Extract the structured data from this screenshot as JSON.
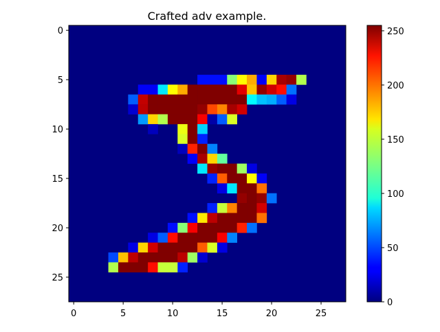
{
  "chart_data": {
    "type": "heatmap",
    "title": "Crafted adv example.",
    "colormap": "jet",
    "x_ticks": [
      0,
      5,
      10,
      15,
      20,
      25
    ],
    "y_ticks": [
      0,
      5,
      10,
      15,
      20,
      25
    ],
    "colorbar_ticks": [
      0,
      50,
      100,
      150,
      200,
      250
    ],
    "colorbar_range": [
      0,
      255
    ],
    "rows": 28,
    "cols": 28,
    "pixels": [
      [
        5,
        13,
        35
      ],
      [
        5,
        14,
        35
      ],
      [
        5,
        15,
        35
      ],
      [
        5,
        16,
        130
      ],
      [
        5,
        17,
        160
      ],
      [
        5,
        18,
        180
      ],
      [
        5,
        19,
        30
      ],
      [
        5,
        20,
        170
      ],
      [
        5,
        21,
        245
      ],
      [
        5,
        22,
        250
      ],
      [
        5,
        23,
        140
      ],
      [
        6,
        7,
        30
      ],
      [
        6,
        8,
        30
      ],
      [
        6,
        9,
        90
      ],
      [
        6,
        10,
        160
      ],
      [
        6,
        11,
        180
      ],
      [
        6,
        12,
        255
      ],
      [
        6,
        13,
        255
      ],
      [
        6,
        14,
        255
      ],
      [
        6,
        15,
        255
      ],
      [
        6,
        16,
        255
      ],
      [
        6,
        17,
        230
      ],
      [
        6,
        18,
        175
      ],
      [
        6,
        19,
        250
      ],
      [
        6,
        20,
        235
      ],
      [
        6,
        21,
        220
      ],
      [
        6,
        22,
        60
      ],
      [
        7,
        6,
        55
      ],
      [
        7,
        7,
        238
      ],
      [
        7,
        8,
        255
      ],
      [
        7,
        9,
        255
      ],
      [
        7,
        10,
        255
      ],
      [
        7,
        11,
        255
      ],
      [
        7,
        12,
        255
      ],
      [
        7,
        13,
        255
      ],
      [
        7,
        14,
        255
      ],
      [
        7,
        15,
        255
      ],
      [
        7,
        16,
        255
      ],
      [
        7,
        17,
        255
      ],
      [
        7,
        18,
        95
      ],
      [
        7,
        19,
        80
      ],
      [
        7,
        20,
        75
      ],
      [
        7,
        21,
        55
      ],
      [
        7,
        22,
        25
      ],
      [
        8,
        6,
        20
      ],
      [
        8,
        7,
        240
      ],
      [
        8,
        8,
        255
      ],
      [
        8,
        9,
        255
      ],
      [
        8,
        10,
        255
      ],
      [
        8,
        11,
        255
      ],
      [
        8,
        12,
        255
      ],
      [
        8,
        13,
        250
      ],
      [
        8,
        14,
        205
      ],
      [
        8,
        15,
        190
      ],
      [
        8,
        16,
        245
      ],
      [
        8,
        17,
        235
      ],
      [
        9,
        7,
        70
      ],
      [
        9,
        8,
        170
      ],
      [
        9,
        9,
        140
      ],
      [
        9,
        10,
        255
      ],
      [
        9,
        11,
        255
      ],
      [
        9,
        12,
        255
      ],
      [
        9,
        13,
        225
      ],
      [
        9,
        14,
        10
      ],
      [
        9,
        15,
        55
      ],
      [
        9,
        16,
        150
      ],
      [
        10,
        8,
        15
      ],
      [
        10,
        11,
        155
      ],
      [
        10,
        12,
        255
      ],
      [
        10,
        13,
        85
      ],
      [
        11,
        11,
        150
      ],
      [
        11,
        12,
        255
      ],
      [
        11,
        13,
        40
      ],
      [
        12,
        11,
        15
      ],
      [
        12,
        12,
        215
      ],
      [
        12,
        13,
        255
      ],
      [
        12,
        14,
        65
      ],
      [
        13,
        12,
        30
      ],
      [
        13,
        13,
        245
      ],
      [
        13,
        14,
        170
      ],
      [
        13,
        15,
        120
      ],
      [
        14,
        13,
        90
      ],
      [
        14,
        14,
        250
      ],
      [
        14,
        15,
        255
      ],
      [
        14,
        16,
        255
      ],
      [
        14,
        17,
        135
      ],
      [
        14,
        18,
        25
      ],
      [
        15,
        14,
        40
      ],
      [
        15,
        15,
        200
      ],
      [
        15,
        16,
        255
      ],
      [
        15,
        17,
        255
      ],
      [
        15,
        18,
        160
      ],
      [
        15,
        19,
        30
      ],
      [
        16,
        15,
        25
      ],
      [
        16,
        16,
        90
      ],
      [
        16,
        17,
        255
      ],
      [
        16,
        18,
        255
      ],
      [
        16,
        19,
        195
      ],
      [
        17,
        17,
        250
      ],
      [
        17,
        18,
        255
      ],
      [
        17,
        19,
        250
      ],
      [
        17,
        20,
        60
      ],
      [
        18,
        14,
        40
      ],
      [
        18,
        15,
        145
      ],
      [
        18,
        16,
        190
      ],
      [
        18,
        17,
        255
      ],
      [
        18,
        18,
        255
      ],
      [
        18,
        19,
        235
      ],
      [
        19,
        12,
        35
      ],
      [
        19,
        13,
        165
      ],
      [
        19,
        14,
        240
      ],
      [
        19,
        15,
        255
      ],
      [
        19,
        16,
        255
      ],
      [
        19,
        17,
        255
      ],
      [
        19,
        18,
        255
      ],
      [
        19,
        19,
        195
      ],
      [
        20,
        10,
        35
      ],
      [
        20,
        11,
        130
      ],
      [
        20,
        12,
        225
      ],
      [
        20,
        13,
        255
      ],
      [
        20,
        14,
        255
      ],
      [
        20,
        15,
        255
      ],
      [
        20,
        16,
        255
      ],
      [
        20,
        17,
        215
      ],
      [
        20,
        18,
        60
      ],
      [
        21,
        8,
        25
      ],
      [
        21,
        9,
        55
      ],
      [
        21,
        10,
        220
      ],
      [
        21,
        11,
        255
      ],
      [
        21,
        12,
        255
      ],
      [
        21,
        13,
        255
      ],
      [
        21,
        14,
        255
      ],
      [
        21,
        15,
        225
      ],
      [
        21,
        16,
        65
      ],
      [
        22,
        6,
        25
      ],
      [
        22,
        7,
        170
      ],
      [
        22,
        8,
        235
      ],
      [
        22,
        9,
        255
      ],
      [
        22,
        10,
        255
      ],
      [
        22,
        11,
        255
      ],
      [
        22,
        12,
        255
      ],
      [
        22,
        13,
        200
      ],
      [
        22,
        14,
        150
      ],
      [
        22,
        15,
        25
      ],
      [
        23,
        4,
        50
      ],
      [
        23,
        5,
        175
      ],
      [
        23,
        6,
        240
      ],
      [
        23,
        7,
        255
      ],
      [
        23,
        8,
        255
      ],
      [
        23,
        9,
        255
      ],
      [
        23,
        10,
        255
      ],
      [
        23,
        11,
        240
      ],
      [
        23,
        12,
        135
      ],
      [
        23,
        13,
        20
      ],
      [
        24,
        4,
        140
      ],
      [
        24,
        5,
        255
      ],
      [
        24,
        6,
        255
      ],
      [
        24,
        7,
        255
      ],
      [
        24,
        8,
        220
      ],
      [
        24,
        9,
        145
      ],
      [
        24,
        10,
        145
      ],
      [
        24,
        11,
        40
      ]
    ]
  }
}
